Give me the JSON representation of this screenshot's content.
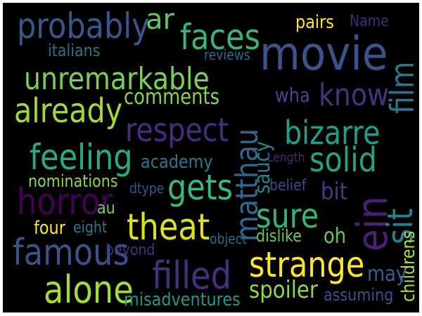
{
  "words": [
    {
      "text": "probably",
      "color": "#39568c"
    },
    {
      "text": "ar",
      "color": "#5ec962"
    },
    {
      "text": "faces",
      "color": "#35b779"
    },
    {
      "text": "movie",
      "color": "#3b528b"
    },
    {
      "text": "pairs",
      "color": "#fde725"
    },
    {
      "text": "Name",
      "color": "#482878"
    },
    {
      "text": "italians",
      "color": "#2c728e"
    },
    {
      "text": "reviews",
      "color": "#31688e"
    },
    {
      "text": "film",
      "color": "#2a788e"
    },
    {
      "text": "unremarkable",
      "color": "#7ad151"
    },
    {
      "text": "comments",
      "color": "#84d44b"
    },
    {
      "text": "already",
      "color": "#a0da39"
    },
    {
      "text": "wha",
      "color": "#3e4a89"
    },
    {
      "text": "know",
      "color": "#46327e"
    },
    {
      "text": "respect",
      "color": "#472d7b"
    },
    {
      "text": "matthau",
      "color": "#31688e"
    },
    {
      "text": "saucy",
      "color": "#26828e"
    },
    {
      "text": "bizarre",
      "color": "#1f9e89"
    },
    {
      "text": "feeling",
      "color": "#25ac82"
    },
    {
      "text": "academy",
      "color": "#2a788e"
    },
    {
      "text": "solid",
      "color": "#20a486"
    },
    {
      "text": "Length",
      "color": "#482878"
    },
    {
      "text": "gets",
      "color": "#38b977"
    },
    {
      "text": "nominations",
      "color": "#8ed645"
    },
    {
      "text": "dtype",
      "color": "#3b528b"
    },
    {
      "text": "belief",
      "color": "#3e4989"
    },
    {
      "text": "horror",
      "color": "#440154"
    },
    {
      "text": "bit",
      "color": "#443a83"
    },
    {
      "text": "ein",
      "color": "#482173"
    },
    {
      "text": "sit",
      "color": "#26828e"
    },
    {
      "text": "childrens",
      "color": "#b5de2b"
    },
    {
      "text": "au",
      "color": "#70cf57"
    },
    {
      "text": "sure",
      "color": "#31b57b"
    },
    {
      "text": "theat",
      "color": "#dde318"
    },
    {
      "text": "four",
      "color": "#fde725"
    },
    {
      "text": "eight",
      "color": "#2a788e"
    },
    {
      "text": "object",
      "color": "#31688e"
    },
    {
      "text": "dislike",
      "color": "#67cc5c"
    },
    {
      "text": "oh",
      "color": "#5ec962"
    },
    {
      "text": "famous",
      "color": "#3b528b"
    },
    {
      "text": "beyond",
      "color": "#46327e"
    },
    {
      "text": "strange",
      "color": "#fde725"
    },
    {
      "text": "filled",
      "color": "#46307e"
    },
    {
      "text": "may",
      "color": "#355f8d"
    },
    {
      "text": "alone",
      "color": "#a5db36"
    },
    {
      "text": "spoiler",
      "color": "#90d743"
    },
    {
      "text": "misadventures",
      "color": "#1f988b"
    },
    {
      "text": "assuming",
      "color": "#3b528b"
    }
  ]
}
